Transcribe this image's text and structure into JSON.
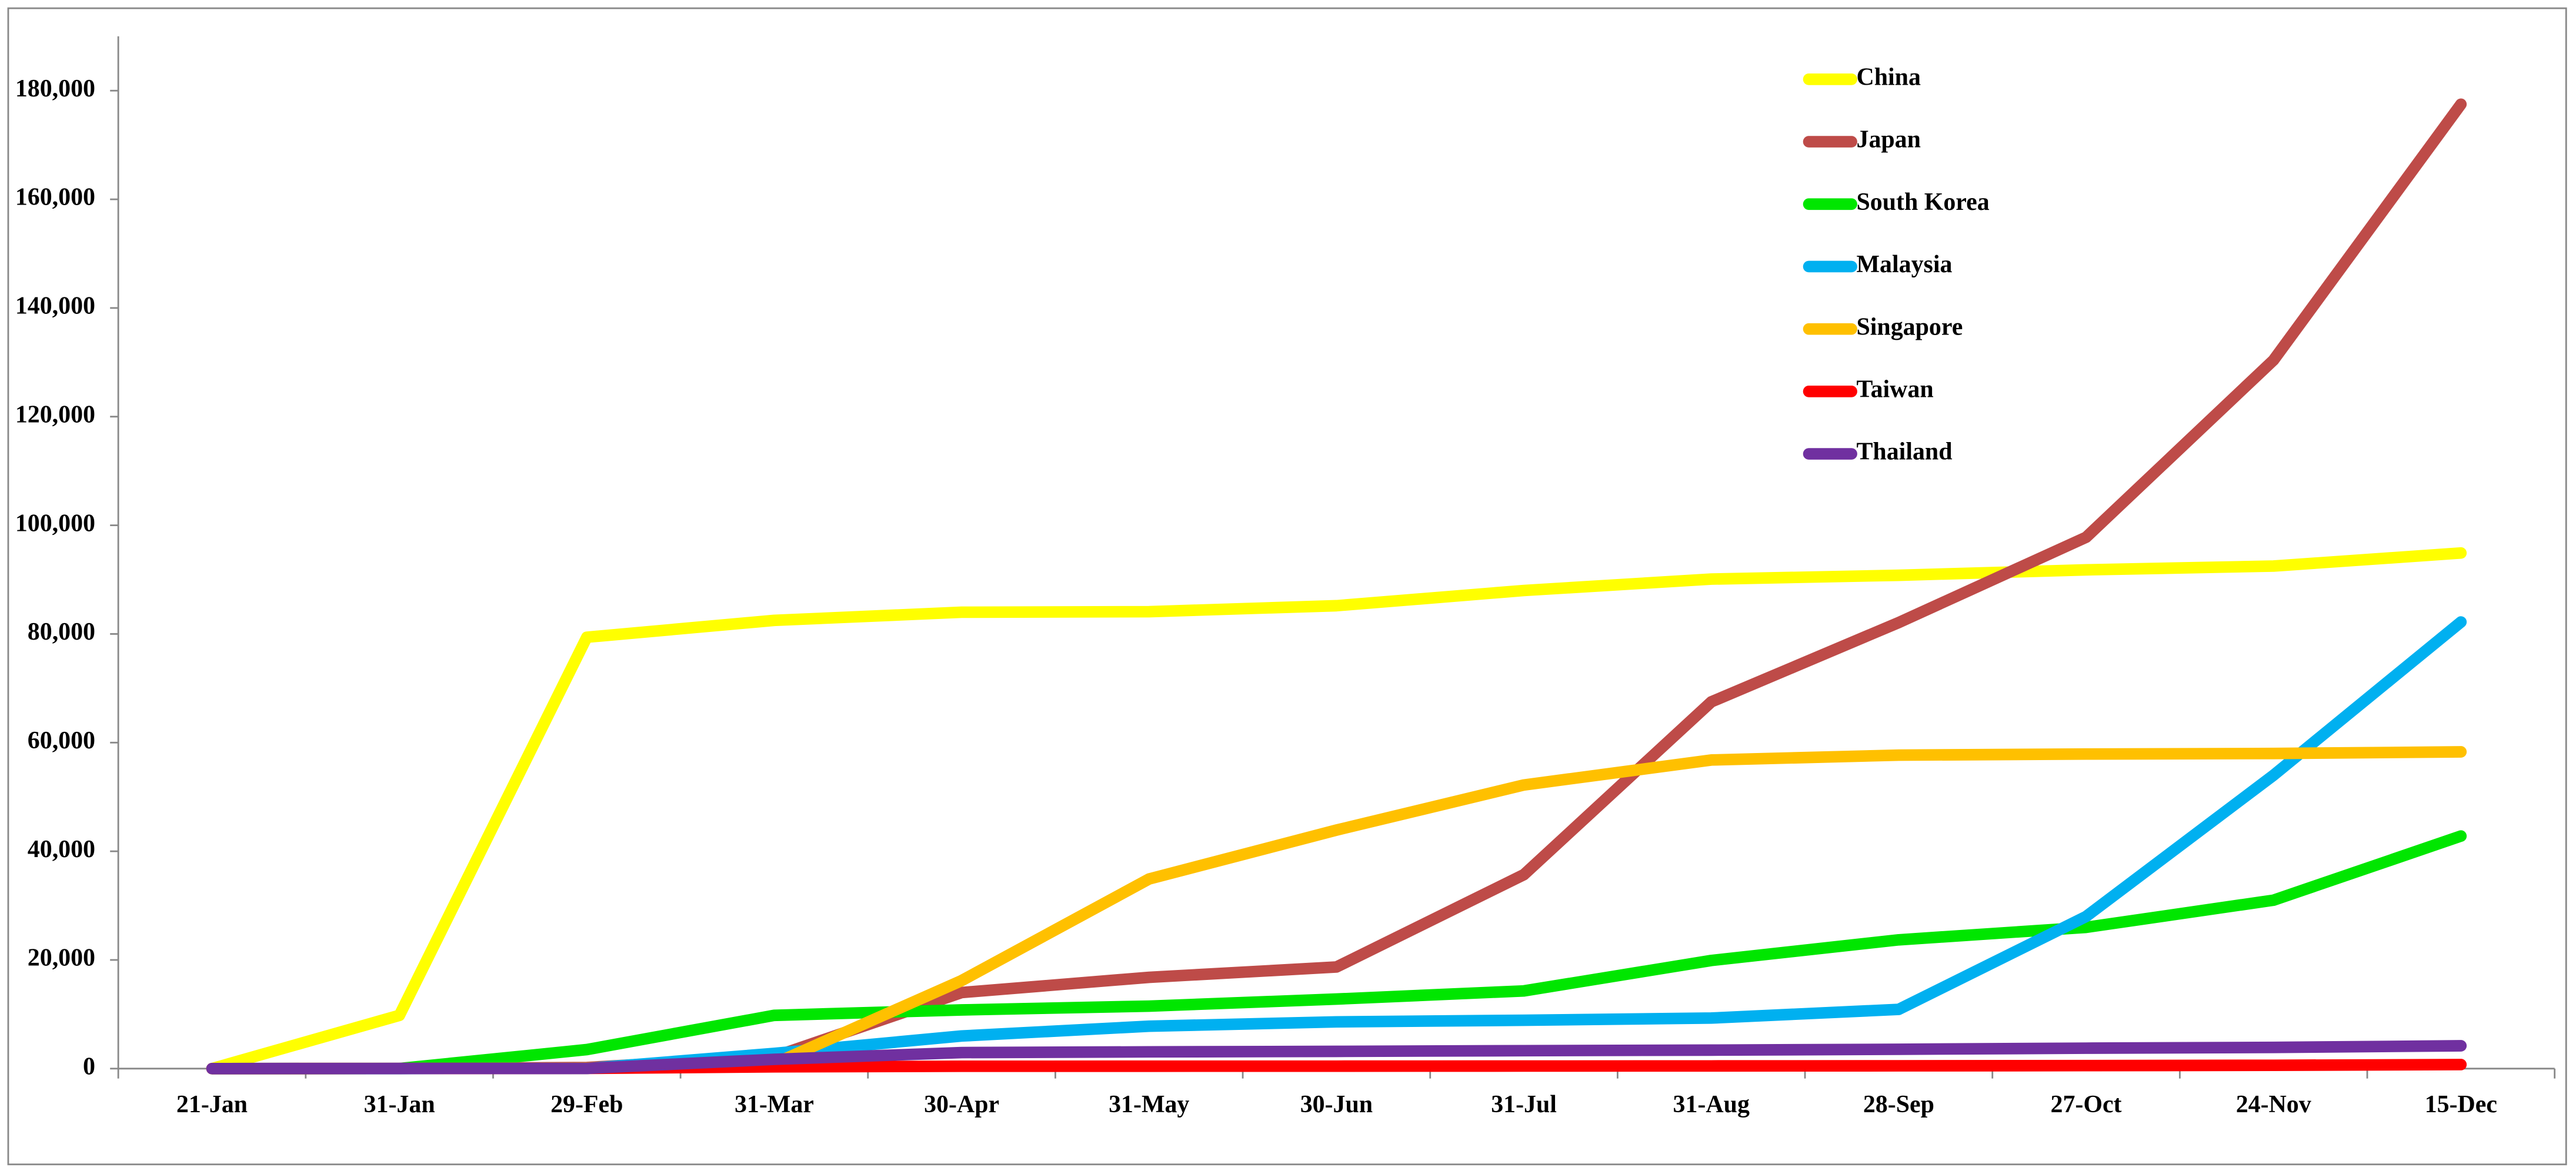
{
  "chart_data": {
    "type": "line",
    "categories": [
      "21-Jan",
      "31-Jan",
      "29-Feb",
      "31-Mar",
      "30-Apr",
      "31-May",
      "30-Jun",
      "31-Jul",
      "31-Aug",
      "28-Sep",
      "27-Oct",
      "24-Nov",
      "15-Dec"
    ],
    "series": [
      {
        "name": "China",
        "color": "#ffff00",
        "values": [
          0,
          9800,
          79400,
          82500,
          84000,
          84100,
          85200,
          88000,
          90100,
          90800,
          91800,
          92500,
          94900
        ]
      },
      {
        "name": "Japan",
        "color": "#be4b48",
        "values": [
          0,
          0,
          200,
          2200,
          14000,
          16800,
          18700,
          35700,
          67500,
          82100,
          97800,
          130400,
          177500
        ]
      },
      {
        "name": "South Korea",
        "color": "#00e600",
        "values": [
          0,
          11,
          3500,
          9800,
          10800,
          11500,
          12800,
          14300,
          19900,
          23700,
          26000,
          31000,
          42800
        ]
      },
      {
        "name": "Malaysia",
        "color": "#00b0f0",
        "values": [
          0,
          8,
          25,
          2800,
          6000,
          7800,
          8600,
          8900,
          9300,
          10900,
          28000,
          54000,
          82200
        ]
      },
      {
        "name": "Singapore",
        "color": "#ffc000",
        "values": [
          0,
          16,
          100,
          900,
          16200,
          34900,
          43900,
          52200,
          56800,
          57700,
          57900,
          58000,
          58300
        ]
      },
      {
        "name": "Taiwan",
        "color": "#ff0000",
        "values": [
          0,
          10,
          40,
          320,
          430,
          440,
          450,
          470,
          490,
          510,
          550,
          610,
          740
        ]
      },
      {
        "name": "Thailand",
        "color": "#7030a0",
        "values": [
          0,
          19,
          40,
          1700,
          2950,
          3080,
          3170,
          3300,
          3400,
          3560,
          3760,
          3900,
          4200
        ]
      }
    ],
    "ylim": [
      0,
      190000
    ],
    "yticks": [
      0,
      {
        "value": 20000,
        "label": "20,000"
      },
      {
        "value": 40000,
        "label": "40,000"
      },
      {
        "value": 60000,
        "label": "60,000"
      },
      {
        "value": 80000,
        "label": "80,000"
      },
      {
        "value": 100000,
        "label": "100,000"
      },
      {
        "value": 120000,
        "label": "120,000"
      },
      {
        "value": 140000,
        "label": "140,000"
      },
      {
        "value": 160000,
        "label": "160,000"
      },
      {
        "value": 180000,
        "label": "180,000"
      }
    ],
    "legend": "top-right",
    "grid": false
  }
}
